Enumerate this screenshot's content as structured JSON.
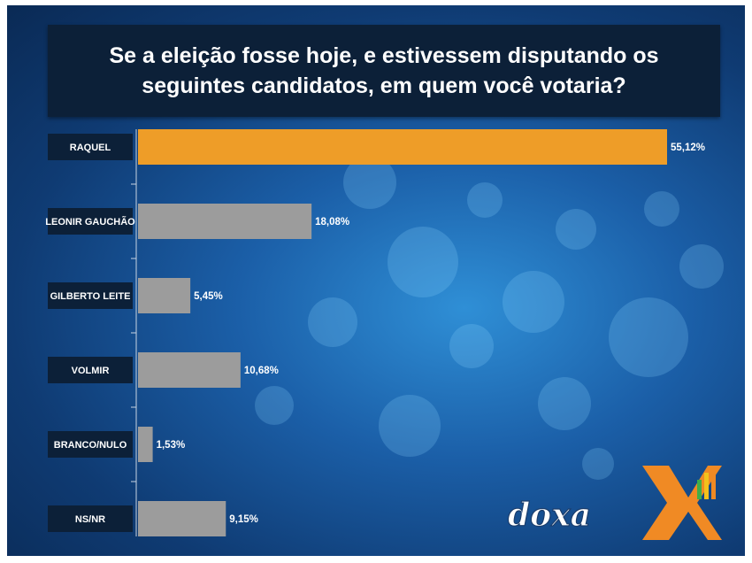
{
  "colors": {
    "highlight_bar": "#ee9d28",
    "bar": "#9c9c9c",
    "label_bg": "#0c2038",
    "title_bg": "#0c2038"
  },
  "logo": {
    "icon": "doxa-x-bars-logo",
    "text": "doxa"
  },
  "chart_data": {
    "type": "bar",
    "orientation": "horizontal",
    "title": "Se a eleição fosse hoje, e estivessem disputando os seguintes candidatos, em quem você votaria?",
    "categories": [
      "RAQUEL",
      "LEONIR GAUCHÃO",
      "GILBERTO LEITE",
      "VOLMIR",
      "BRANCO/NULO",
      "NS/NR"
    ],
    "values": [
      55.12,
      18.08,
      5.45,
      10.68,
      1.53,
      9.15
    ],
    "value_labels": [
      "55,12%",
      "18,08%",
      "5,45%",
      "10,68%",
      "1,53%",
      "9,15%"
    ],
    "highlight_index": 0,
    "xlim": [
      0,
      55.12
    ],
    "grid": false,
    "legend": "none"
  }
}
